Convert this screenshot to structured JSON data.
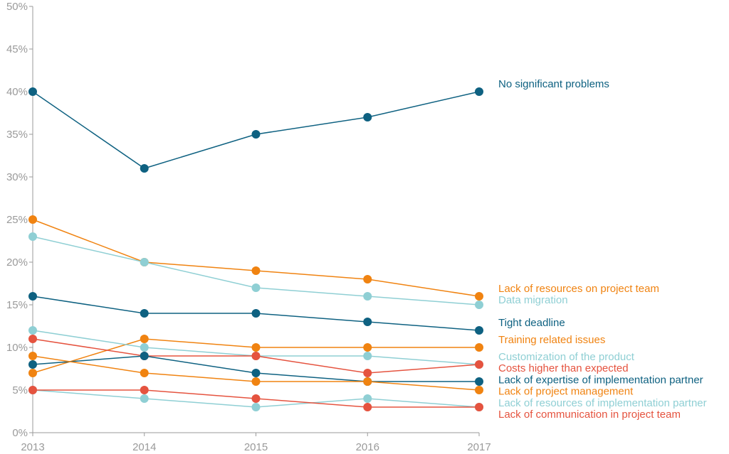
{
  "chart_data": {
    "type": "line",
    "title": "",
    "xlabel": "",
    "ylabel": "",
    "x": [
      "2013",
      "2014",
      "2015",
      "2016",
      "2017"
    ],
    "ylim": [
      0,
      50
    ],
    "y_ticks": [
      "0%",
      "5%",
      "10%",
      "15%",
      "20%",
      "25%",
      "30%",
      "35%",
      "40%",
      "45%",
      "50%"
    ],
    "grid": false,
    "legend": "end-of-line labels",
    "series": [
      {
        "name": "No significant problems",
        "color": "#0e6181",
        "values": [
          40,
          31,
          35,
          37,
          40
        ]
      },
      {
        "name": "Lack of resources on project team",
        "color": "#f08311",
        "values": [
          25,
          20,
          19,
          18,
          16
        ]
      },
      {
        "name": "Data migration",
        "color": "#8fcfd4",
        "values": [
          23,
          20,
          17,
          16,
          15
        ]
      },
      {
        "name": "Tight deadline",
        "color": "#0e6181",
        "values": [
          16,
          14,
          14,
          13,
          12
        ]
      },
      {
        "name": "Training related issues",
        "color": "#f08311",
        "values": [
          7,
          11,
          10,
          10,
          10
        ]
      },
      {
        "name": "Customization of the product",
        "color": "#8fcfd4",
        "values": [
          12,
          10,
          9,
          9,
          8
        ]
      },
      {
        "name": "Costs higher than expected",
        "color": "#e5533f",
        "values": [
          11,
          9,
          9,
          7,
          8
        ]
      },
      {
        "name": "Lack of expertise of implementation partner",
        "color": "#0e6181",
        "values": [
          8,
          9,
          7,
          6,
          6
        ]
      },
      {
        "name": "Lack of project management",
        "color": "#f08311",
        "values": [
          9,
          7,
          6,
          6,
          5
        ]
      },
      {
        "name": "Lack of resources of implementation partner",
        "color": "#8fcfd4",
        "values": [
          5,
          4,
          3,
          4,
          3
        ]
      },
      {
        "name": "Lack of communication in project team",
        "color": "#e5533f",
        "values": [
          5,
          5,
          4,
          3,
          3
        ]
      }
    ]
  }
}
